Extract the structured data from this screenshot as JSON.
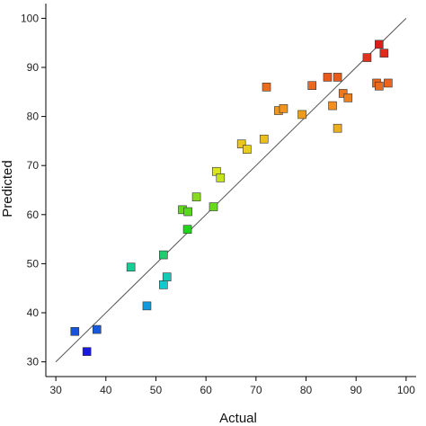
{
  "chart_data": {
    "type": "scatter",
    "title": "",
    "xlabel": "Actual",
    "ylabel": "Predicted",
    "xlim": [
      28,
      102
    ],
    "ylim": [
      27,
      103
    ],
    "xticks": [
      30,
      40,
      50,
      60,
      70,
      80,
      90,
      100
    ],
    "yticks": [
      30,
      40,
      50,
      60,
      70,
      80,
      90,
      100
    ],
    "grid": false,
    "legend": "none",
    "marker": "square",
    "color_scale": [
      "#1a1adc",
      "#12c8e0",
      "#22d41a",
      "#e6e61e",
      "#f0901e",
      "#e11a1a"
    ],
    "reference_line": {
      "from": [
        30,
        30
      ],
      "to": [
        100,
        100
      ],
      "color": "#555555"
    },
    "points": [
      {
        "x": 33.8,
        "y": 36.2
      },
      {
        "x": 36.2,
        "y": 32.1
      },
      {
        "x": 38.2,
        "y": 36.6
      },
      {
        "x": 45.0,
        "y": 49.3
      },
      {
        "x": 48.2,
        "y": 41.4
      },
      {
        "x": 51.5,
        "y": 51.8
      },
      {
        "x": 51.5,
        "y": 45.7
      },
      {
        "x": 52.2,
        "y": 47.3
      },
      {
        "x": 55.3,
        "y": 61.0
      },
      {
        "x": 56.3,
        "y": 57.0
      },
      {
        "x": 56.4,
        "y": 60.6
      },
      {
        "x": 58.1,
        "y": 63.6
      },
      {
        "x": 61.5,
        "y": 61.6
      },
      {
        "x": 62.1,
        "y": 68.8
      },
      {
        "x": 62.9,
        "y": 67.5
      },
      {
        "x": 67.1,
        "y": 74.4
      },
      {
        "x": 68.2,
        "y": 73.3
      },
      {
        "x": 71.6,
        "y": 75.4
      },
      {
        "x": 72.1,
        "y": 86.0
      },
      {
        "x": 74.5,
        "y": 81.2
      },
      {
        "x": 75.5,
        "y": 81.6
      },
      {
        "x": 79.2,
        "y": 80.4
      },
      {
        "x": 81.2,
        "y": 86.3
      },
      {
        "x": 84.3,
        "y": 88.0
      },
      {
        "x": 85.3,
        "y": 82.2
      },
      {
        "x": 86.3,
        "y": 88.0
      },
      {
        "x": 86.3,
        "y": 77.6
      },
      {
        "x": 87.4,
        "y": 84.7
      },
      {
        "x": 88.4,
        "y": 83.8
      },
      {
        "x": 92.2,
        "y": 92.0
      },
      {
        "x": 94.1,
        "y": 86.8
      },
      {
        "x": 94.6,
        "y": 86.2
      },
      {
        "x": 94.6,
        "y": 94.7
      },
      {
        "x": 95.6,
        "y": 92.9
      },
      {
        "x": 96.4,
        "y": 86.8
      }
    ]
  }
}
